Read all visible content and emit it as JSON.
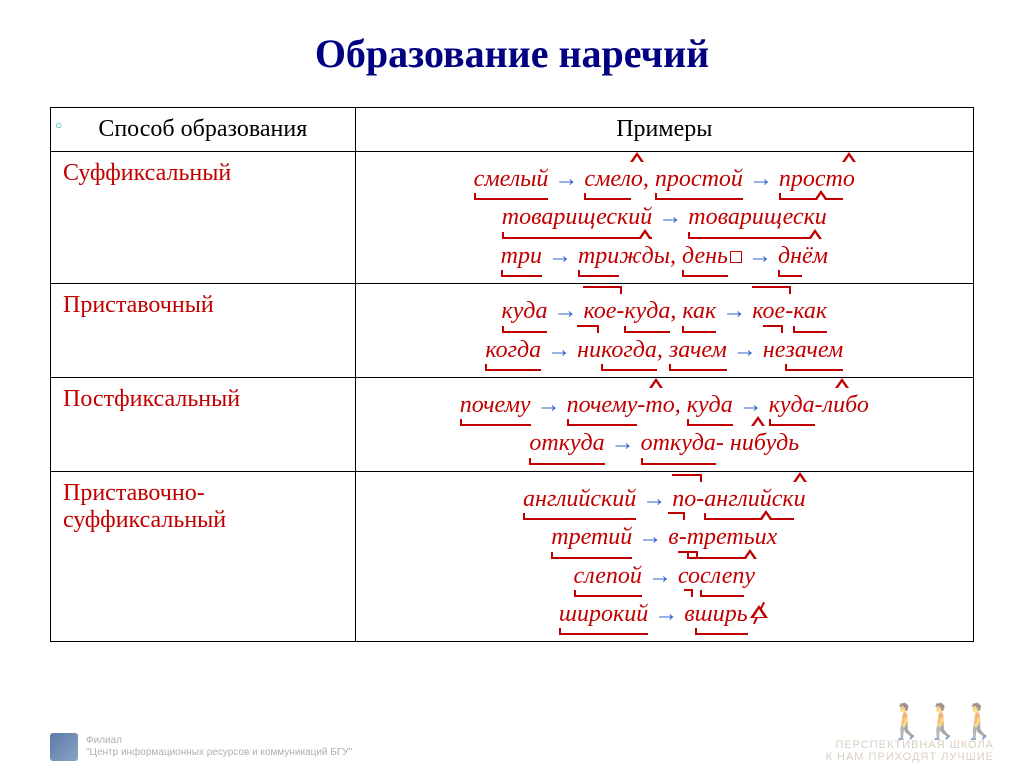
{
  "title": "Образование наречий",
  "corner_decoration": "○",
  "headers": {
    "col1": "Способ образования",
    "col2": "Примеры"
  },
  "rows": [
    {
      "method": "Суффиксальный",
      "lines": [
        {
          "parts": [
            {
              "t": "смелый",
              "root": true
            },
            {
              "arrow": true
            },
            {
              "t": "смел",
              "root": true
            },
            {
              "t": "о",
              "suffix": true
            },
            {
              "t": ", "
            },
            {
              "t": "простой",
              "root": true
            },
            {
              "arrow": true
            },
            {
              "t": "прост",
              "root": true
            },
            {
              "t": "о",
              "suffix": true
            }
          ]
        },
        {
          "parts": [
            {
              "t": "товарищеский",
              "root": true
            },
            {
              "arrow": true
            },
            {
              "t": "товарищеск",
              "root": true
            },
            {
              "t": "и",
              "suffix": true
            }
          ]
        },
        {
          "parts": [
            {
              "t": "три",
              "root": true
            },
            {
              "arrow": true
            },
            {
              "t": "три",
              "root": true
            },
            {
              "t": "жды",
              "suffix": true
            },
            {
              "t": ", "
            },
            {
              "t": "день",
              "root": true
            },
            {
              "zerobox": true
            },
            {
              "arrow": true
            },
            {
              "t": "дн",
              "root": true
            },
            {
              "t": "ём",
              "suffix": true
            }
          ]
        }
      ]
    },
    {
      "method": "Приставочный",
      "lines": [
        {
          "parts": [
            {
              "t": "куда",
              "root": true
            },
            {
              "arrow": true
            },
            {
              "t": "кое-",
              "prefix": true
            },
            {
              "t": "куда",
              "root": true
            },
            {
              "t": ", "
            },
            {
              "t": "как",
              "root": true
            },
            {
              "arrow": true
            },
            {
              "t": "кое-",
              "prefix": true
            },
            {
              "t": "как",
              "root": true
            }
          ]
        },
        {
          "parts": [
            {
              "t": "когда",
              "root": true
            },
            {
              "arrow": true
            },
            {
              "t": "ни",
              "prefix": true
            },
            {
              "t": "когда",
              "root": true
            },
            {
              "t": ", "
            },
            {
              "t": "зачем",
              "root": true
            },
            {
              "arrow": true
            },
            {
              "t": "не",
              "prefix": true
            },
            {
              "t": "зачем",
              "root": true
            }
          ]
        }
      ]
    },
    {
      "method": "Постфиксальный",
      "lines": [
        {
          "parts": [
            {
              "t": "почему",
              "root": true
            },
            {
              "arrow": true
            },
            {
              "t": "почему",
              "root": true
            },
            {
              "t": "-то",
              "suffix": true
            },
            {
              "t": ", "
            },
            {
              "t": "куда",
              "root": true
            },
            {
              "arrow": true
            },
            {
              "t": "куда",
              "root": true
            },
            {
              "t": "-либо",
              "suffix": true
            }
          ]
        },
        {
          "parts": [
            {
              "t": "откуда",
              "root": true
            },
            {
              "arrow": true
            },
            {
              "t": "откуда",
              "root": true
            },
            {
              "t": "- нибудь",
              "suffix": true
            }
          ]
        }
      ]
    },
    {
      "method": "Приставочно-суффиксальный",
      "lines": [
        {
          "parts": [
            {
              "t": "английский",
              "root": true
            },
            {
              "arrow": true
            },
            {
              "t": "по-",
              "prefix": true
            },
            {
              "t": "английск",
              "root": true
            },
            {
              "t": "и",
              "suffix": true
            }
          ]
        },
        {
          "parts": [
            {
              "t": "третий",
              "root": true
            },
            {
              "arrow": true
            },
            {
              "t": "в-",
              "prefix": true
            },
            {
              "t": "треть",
              "root": true
            },
            {
              "t": "их",
              "suffix": true
            }
          ]
        },
        {
          "parts": [
            {
              "t": "слепой",
              "root": true
            },
            {
              "arrow": true
            },
            {
              "t": "со",
              "prefix": true
            },
            {
              "t": "слеп",
              "root": true
            },
            {
              "t": "у",
              "suffix": true
            }
          ]
        },
        {
          "parts": [
            {
              "t": "широкий",
              "root": true
            },
            {
              "arrow": true
            },
            {
              "t": "в",
              "prefix": true
            },
            {
              "t": "ширь",
              "root": true
            },
            {
              "nullsuf": true
            }
          ]
        }
      ]
    }
  ],
  "footer": {
    "line1": "Филиал",
    "line2": "\"Центр информационных ресурсов и коммуникаций БГУ\""
  },
  "watermark": {
    "brand": "ПЕРСПЕКТИВНАЯ ШКОЛА",
    "motto": "К НАМ ПРИХОДЯТ ЛУЧШИЕ"
  },
  "colors": {
    "title": "#000080",
    "method": "#c00000",
    "example": "#c00000",
    "arrow": "#3366cc",
    "border": "#000000"
  }
}
